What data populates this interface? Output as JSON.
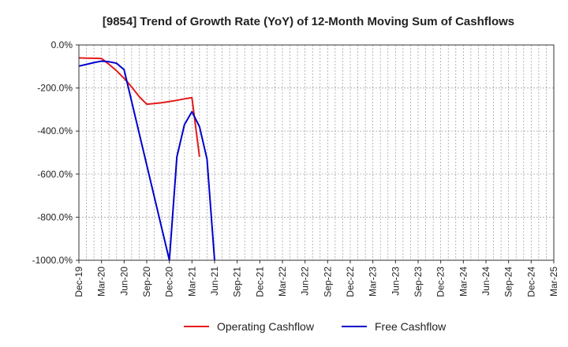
{
  "chart_data": {
    "type": "line",
    "title": "[9854]  Trend of Growth Rate (YoY) of 12-Month Moving Sum of Cashflows",
    "xlabel": "",
    "ylabel": "",
    "ylim": [
      -1000,
      0
    ],
    "yticks": [
      "0.0%",
      "-200.0%",
      "-400.0%",
      "-600.0%",
      "-800.0%",
      "-1000.0%"
    ],
    "ytick_values": [
      0,
      -200,
      -400,
      -600,
      -800,
      -1000
    ],
    "x_start": "Dec-19",
    "x_end": "Mar-25",
    "x_tick_labels": [
      "Dec-19",
      "Mar-20",
      "Jun-20",
      "Sep-20",
      "Dec-20",
      "Mar-21",
      "Jun-21",
      "Sep-21",
      "Dec-21",
      "Mar-22",
      "Jun-22",
      "Sep-22",
      "Dec-22",
      "Mar-23",
      "Jun-23",
      "Sep-23",
      "Dec-23",
      "Mar-24",
      "Jun-24",
      "Sep-24",
      "Dec-24",
      "Mar-25"
    ],
    "grid": true,
    "legend_position": "bottom",
    "series": [
      {
        "name": "Operating Cashflow",
        "color": "#e41a1c",
        "points": [
          {
            "x": "Dec-19",
            "y": -60
          },
          {
            "x": "Jan-20",
            "y": -61
          },
          {
            "x": "Feb-20",
            "y": -62
          },
          {
            "x": "Mar-20",
            "y": -63
          },
          {
            "x": "Apr-20",
            "y": -90
          },
          {
            "x": "May-20",
            "y": -120
          },
          {
            "x": "Jun-20",
            "y": -155
          },
          {
            "x": "Jul-20",
            "y": -195
          },
          {
            "x": "Aug-20",
            "y": -240
          },
          {
            "x": "Sep-20",
            "y": -275
          },
          {
            "x": "Oct-20",
            "y": -272
          },
          {
            "x": "Nov-20",
            "y": -268
          },
          {
            "x": "Dec-20",
            "y": -263
          },
          {
            "x": "Jan-21",
            "y": -257
          },
          {
            "x": "Feb-21",
            "y": -250
          },
          {
            "x": "Mar-21",
            "y": -245
          },
          {
            "x": "Apr-21",
            "y": -520
          }
        ]
      },
      {
        "name": "Free Cashflow",
        "color": "#0000cc",
        "points": [
          {
            "x": "Dec-19",
            "y": -98
          },
          {
            "x": "Jan-20",
            "y": -90
          },
          {
            "x": "Feb-20",
            "y": -82
          },
          {
            "x": "Mar-20",
            "y": -75
          },
          {
            "x": "Apr-20",
            "y": -78
          },
          {
            "x": "May-20",
            "y": -85
          },
          {
            "x": "Jun-20",
            "y": -115
          },
          {
            "x": "Dec-20",
            "y": -1000
          },
          {
            "x": "Jan-21",
            "y": -520
          },
          {
            "x": "Feb-21",
            "y": -370
          },
          {
            "x": "Mar-21",
            "y": -310
          },
          {
            "x": "Apr-21",
            "y": -380
          },
          {
            "x": "May-21",
            "y": -530
          },
          {
            "x": "Jun-21",
            "y": -1000
          }
        ]
      }
    ]
  }
}
